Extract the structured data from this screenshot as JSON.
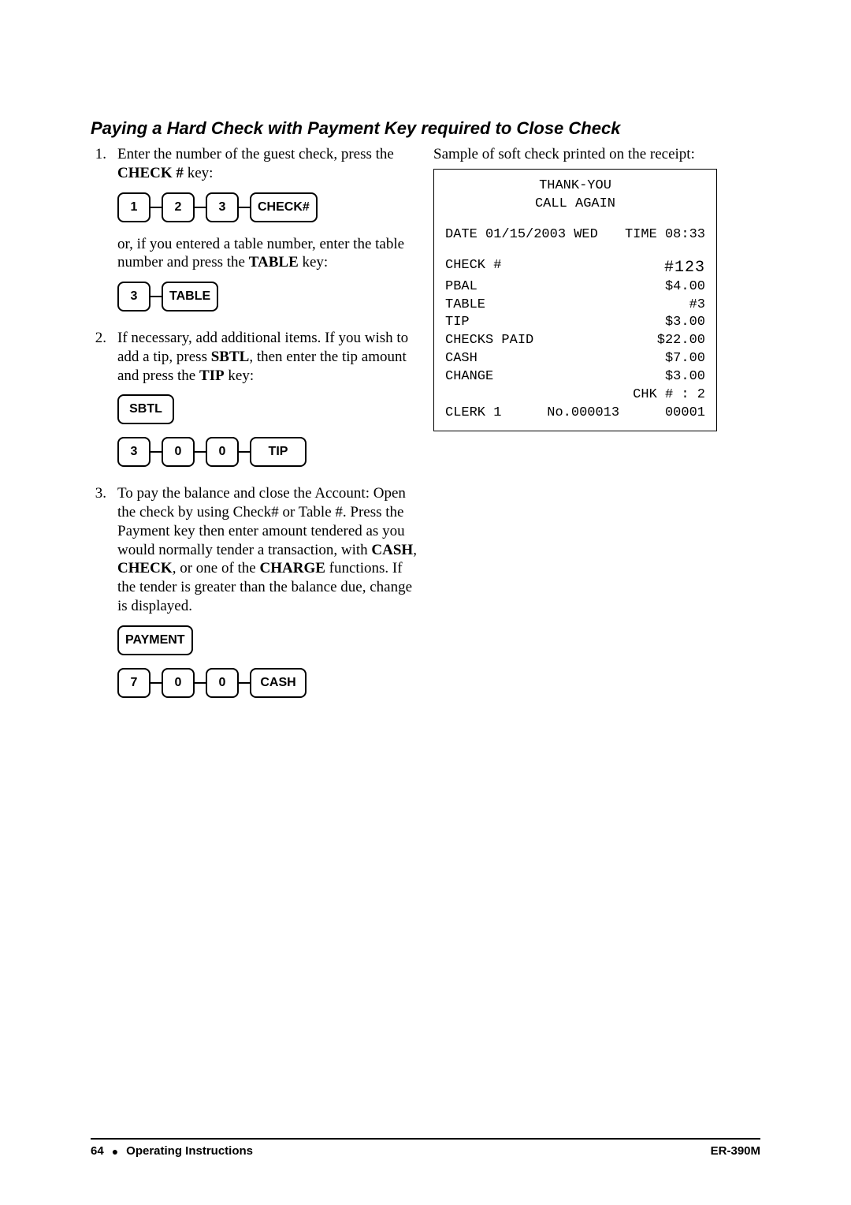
{
  "title": "Paying a Hard Check with Payment Key required to Close Check",
  "steps": {
    "s1": {
      "num": "1.",
      "p1a": "Enter the number of the guest check, press the ",
      "p1b": "CHECK #",
      "p1c": " key:",
      "keys1": [
        "1",
        "2",
        "3",
        "CHECK#"
      ],
      "p2a": "or, if you entered a table number, enter the table number and press the ",
      "p2b": "TABLE",
      "p2c": " key:",
      "keys2": [
        "3",
        "TABLE"
      ]
    },
    "s2": {
      "num": "2.",
      "p1a": "If necessary, add additional items.    If you wish to add a tip, press ",
      "p1b": "SBTL",
      "p1c": ", then enter the tip amount and press the ",
      "p1d": "TIP",
      "p1e": " key:",
      "keys1": [
        "SBTL"
      ],
      "keys2": [
        "3",
        "0",
        "0",
        "TIP"
      ]
    },
    "s3": {
      "num": "3.",
      "p1a": "To pay the balance and close the Account:    Open the check by using Check# or Table #.    Press the Payment key then enter amount tendered as you would normally tender a transaction, with ",
      "p1b": "CASH",
      "p1c": ", ",
      "p1d": "CHECK",
      "p1e": ", or one of the ",
      "p1f": "CHARGE",
      "p1g": " functions.    If the tender is greater than the balance due, change is displayed.",
      "keys1": [
        "PAYMENT"
      ],
      "keys2": [
        "7",
        "0",
        "0",
        "CASH"
      ]
    }
  },
  "sample_intro": "Sample of soft check printed on the receipt:",
  "receipt": {
    "header1": "THANK-YOU",
    "header2": "CALL AGAIN",
    "dateline_l": "DATE 01/15/2003 WED",
    "dateline_r": "TIME 08:33",
    "rows": [
      {
        "l": "CHECK #",
        "r": "#123",
        "big": true
      },
      {
        "l": "PBAL",
        "r": "$4.00"
      },
      {
        "l": "TABLE",
        "r": "#3"
      },
      {
        "l": "TIP",
        "r": "$3.00"
      },
      {
        "l": "CHECKS PAID",
        "r": "$22.00"
      },
      {
        "l": "CASH",
        "r": "$7.00"
      },
      {
        "l": "CHANGE",
        "r": "$3.00"
      },
      {
        "l": "",
        "r": "CHK # : 2"
      }
    ],
    "footer_l": "CLERK 1",
    "footer_m": "No.000013",
    "footer_r": "00001"
  },
  "page_footer": {
    "page": "64",
    "section": "Operating Instructions",
    "model": "ER-390M"
  }
}
